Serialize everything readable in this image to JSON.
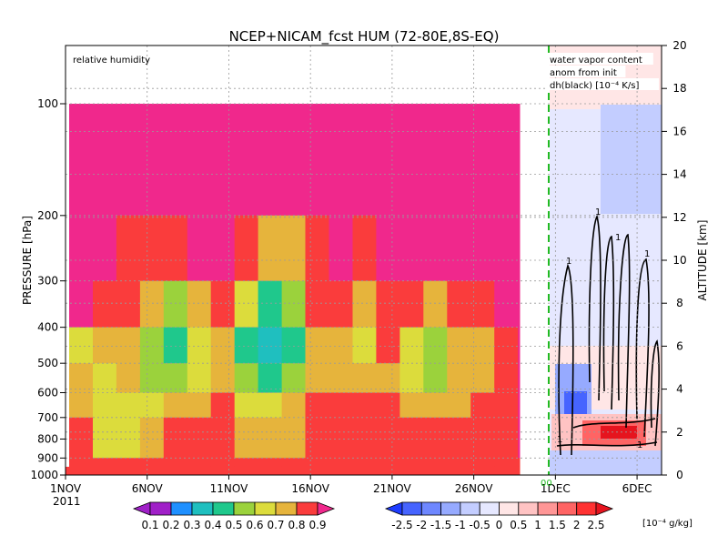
{
  "chart_data": {
    "type": "heatmap",
    "title": "NCEP+NICAM_fcst HUM (72-80E,8S-EQ)",
    "ylabel_left": "PRESSURE [hPa]",
    "ylabel_right": "ALTITUDE [km]",
    "left_panel_label": "relative humidity",
    "right_panel_label_lines": [
      "water vapor content",
      "anom from init",
      "dh(black) [10⁻⁴ K/s]"
    ],
    "x_ticks": [
      "1NOV",
      "6NOV",
      "11NOV",
      "16NOV",
      "21NOV",
      "26NOV",
      "1DEC",
      "6DEC"
    ],
    "x_year": "2011",
    "init_marker": "00",
    "pressure_ticks": [
      100,
      200,
      300,
      400,
      500,
      600,
      700,
      800,
      900,
      1000
    ],
    "altitude_ticks": [
      0,
      2,
      4,
      6,
      8,
      10,
      12,
      14,
      16,
      18,
      20
    ],
    "colorbar_rh": {
      "ticks": [
        "0.1",
        "0.2",
        "0.3",
        "0.4",
        "0.5",
        "0.6",
        "0.7",
        "0.8",
        "0.9"
      ],
      "colors": [
        "#a020c8",
        "#1f90ff",
        "#1fbfbf",
        "#1fc88c",
        "#9bd23c",
        "#dcdc3c",
        "#e6b43c",
        "#fa3c3c",
        "#f0288c"
      ]
    },
    "colorbar_anom": {
      "ticks": [
        "-2.5",
        "-2",
        "-1.5",
        "-1",
        "-0.5",
        "0",
        "0.5",
        "1",
        "1.5",
        "2",
        "2.5"
      ],
      "units": "[10⁻⁴ g/kg]",
      "colors": [
        "#1e3cff",
        "#4664ff",
        "#6e87ff",
        "#96aaff",
        "#c3cdff",
        "#e6e8ff",
        "#ffe6e6",
        "#ffc3c3",
        "#ff9696",
        "#ff6464",
        "#ff3232",
        "#e6141e"
      ]
    },
    "contour_label": "1",
    "rh_columns": [
      {
        "day": 0.0,
        "profile": [
          0.9,
          0.9,
          0.85,
          0.6,
          0.7,
          0.7,
          0.75,
          0.8
        ]
      },
      {
        "day": 1.5,
        "profile": [
          0.9,
          0.9,
          0.8,
          0.7,
          0.6,
          0.6,
          0.55,
          0.8
        ]
      },
      {
        "day": 3.0,
        "profile": [
          0.9,
          0.8,
          0.75,
          0.7,
          0.7,
          0.6,
          0.6,
          0.8
        ]
      },
      {
        "day": 4.5,
        "profile": [
          0.9,
          0.8,
          0.7,
          0.5,
          0.5,
          0.6,
          0.7,
          0.8
        ]
      },
      {
        "day": 6.0,
        "profile": [
          0.9,
          0.75,
          0.5,
          0.4,
          0.5,
          0.7,
          0.75,
          0.8
        ]
      },
      {
        "day": 7.5,
        "profile": [
          0.9,
          0.85,
          0.7,
          0.6,
          0.6,
          0.7,
          0.75,
          0.8
        ]
      },
      {
        "day": 9.0,
        "profile": [
          0.9,
          0.9,
          0.8,
          0.7,
          0.7,
          0.75,
          0.75,
          0.8
        ]
      },
      {
        "day": 10.5,
        "profile": [
          0.9,
          0.75,
          0.55,
          0.4,
          0.5,
          0.6,
          0.7,
          0.8
        ]
      },
      {
        "day": 12.0,
        "profile": [
          0.9,
          0.7,
          0.4,
          0.3,
          0.4,
          0.6,
          0.7,
          0.8
        ]
      },
      {
        "day": 13.5,
        "profile": [
          0.9,
          0.7,
          0.5,
          0.4,
          0.5,
          0.65,
          0.7,
          0.8
        ]
      },
      {
        "day": 15.0,
        "profile": [
          0.9,
          0.8,
          0.75,
          0.7,
          0.7,
          0.75,
          0.75,
          0.8
        ]
      },
      {
        "day": 16.5,
        "profile": [
          0.9,
          0.85,
          0.75,
          0.7,
          0.7,
          0.75,
          0.75,
          0.8
        ]
      },
      {
        "day": 18.0,
        "profile": [
          0.9,
          0.8,
          0.7,
          0.6,
          0.7,
          0.75,
          0.75,
          0.8
        ]
      },
      {
        "day": 19.5,
        "profile": [
          0.9,
          0.9,
          0.8,
          0.75,
          0.7,
          0.75,
          0.75,
          0.8
        ]
      },
      {
        "day": 21.0,
        "profile": [
          0.9,
          0.9,
          0.75,
          0.6,
          0.6,
          0.7,
          0.75,
          0.8
        ]
      },
      {
        "day": 22.5,
        "profile": [
          0.9,
          0.85,
          0.7,
          0.5,
          0.5,
          0.7,
          0.75,
          0.8
        ]
      },
      {
        "day": 24.0,
        "profile": [
          0.9,
          0.9,
          0.75,
          0.7,
          0.7,
          0.7,
          0.75,
          0.8
        ]
      },
      {
        "day": 25.5,
        "profile": [
          0.9,
          0.9,
          0.8,
          0.7,
          0.7,
          0.75,
          0.75,
          0.8
        ]
      },
      {
        "day": 27.0,
        "profile": [
          0.9,
          0.9,
          0.85,
          0.8,
          0.75,
          0.75,
          0.75,
          0.8
        ]
      },
      {
        "day": 28.5,
        "profile": [
          0.9,
          0.9,
          0.9,
          0.85,
          0.9,
          0.9,
          0.85,
          0.8
        ]
      }
    ],
    "rh_levels_hpa": [
      100,
      200,
      300,
      400,
      500,
      600,
      700,
      900
    ]
  }
}
